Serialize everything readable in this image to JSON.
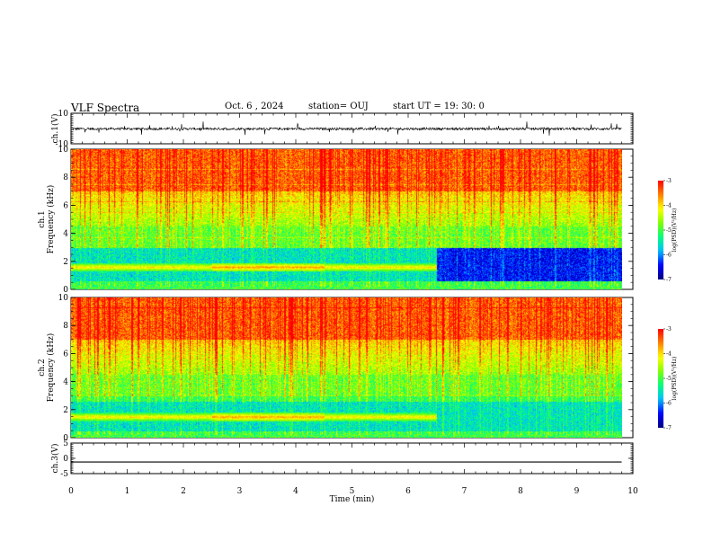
{
  "header": {
    "title": "VLF Spectra",
    "date": "Oct. 6  , 2024",
    "station": "station= OUJ",
    "start": "start  UT =   19: 30: 0"
  },
  "chart_data": {
    "type": "heatmap",
    "x_axis": {
      "label": "Time  (min)",
      "range": [
        0,
        10
      ],
      "ticks": [
        "0",
        "1",
        "2",
        "3",
        "4",
        "5",
        "6",
        "7",
        "8",
        "9",
        "10"
      ]
    },
    "panels": [
      {
        "id": "ch1-waveform",
        "type": "line",
        "ylabel": "ch.1(V)",
        "ylim": [
          -10,
          10
        ],
        "yticks": [
          "10",
          "-10"
        ],
        "trace_color": "#000000",
        "data_extent_min": 9.8,
        "baseline_v": -0.2
      },
      {
        "id": "ch1-spectrogram",
        "type": "heatmap",
        "ylabel_line1": "ch.1",
        "ylabel_line2": "Frequency  (kHz)",
        "ylim": [
          0,
          10
        ],
        "yticks": [
          "0",
          "2",
          "4",
          "6",
          "8",
          "10"
        ],
        "colorbar_label": "log(PSD)(V²/Hz)",
        "colorbar_range": [
          -7,
          -3
        ],
        "colorbar_ticks": [
          "-3",
          "-4",
          "-5",
          "-6",
          "-7"
        ],
        "data_extent_min": 9.8,
        "features": {
          "hum_band_khz": [
            1.3,
            1.9
          ],
          "hum_end_min": 6.5,
          "quiet_band_khz": [
            0.6,
            3.0
          ],
          "quiet_band_log_psd_after_6_5_min": -6.5
        }
      },
      {
        "id": "ch2-spectrogram",
        "type": "heatmap",
        "ylabel_line1": "ch.2",
        "ylabel_line2": "Frequency  (kHz)",
        "ylim": [
          0,
          10
        ],
        "yticks": [
          "0",
          "2",
          "4",
          "6",
          "8",
          "10"
        ],
        "colorbar_label": "log(PSD)(V²/Hz)",
        "colorbar_range": [
          -7,
          -3
        ],
        "colorbar_ticks": [
          "-3",
          "-4",
          "-5",
          "-6",
          "-7"
        ],
        "data_extent_min": 9.8,
        "features": {
          "hum_band_khz": [
            1.2,
            1.8
          ],
          "hum_end_min": 6.5,
          "quiet_band_khz": [
            0.5,
            2.6
          ],
          "quiet_band_log_psd_after_6_5_min": -5.8
        }
      },
      {
        "id": "ch3-waveform",
        "type": "line",
        "ylabel": "ch.3(V)",
        "ylim": [
          -5,
          5
        ],
        "yticks": [
          "5",
          "0",
          "-5"
        ],
        "trace_color": "#000000",
        "data_extent_min": 9.8,
        "constant_value_v": -1.2
      }
    ],
    "colormap": [
      "#000080",
      "#0000ff",
      "#00bfff",
      "#00ff80",
      "#80ff00",
      "#ffff00",
      "#ff8000",
      "#ff0000",
      "#ffffff"
    ]
  }
}
